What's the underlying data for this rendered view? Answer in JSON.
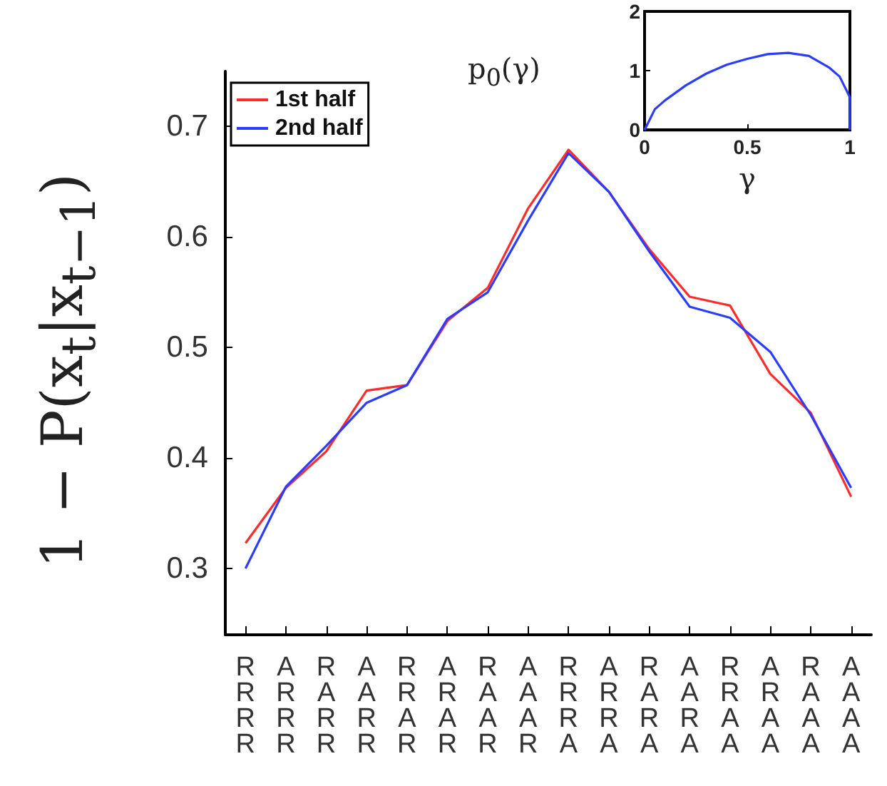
{
  "chart_data": [
    {
      "type": "line",
      "ylabel": "1 − P(x$_{t}$|x$_{t−1}$)",
      "categories": [
        "R\nR\nR\nR",
        "A\nR\nR\nR",
        "R\nA\nR\nR",
        "A\nA\nR\nR",
        "R\nR\nA\nR",
        "A\nR\nA\nR",
        "R\nA\nA\nR",
        "A\nA\nA\nR",
        "R\nR\nR\nA",
        "A\nR\nR\nA",
        "R\nA\nR\nA",
        "A\nA\nR\nA",
        "R\nR\nA\nA",
        "A\nR\nA\nA",
        "R\nA\nA\nA",
        "A\nA\nA\nA"
      ],
      "series": [
        {
          "name": "1st half",
          "color": "#ff2a2a",
          "values": [
            0.323,
            0.373,
            0.406,
            0.461,
            0.466,
            0.524,
            0.554,
            0.626,
            0.679,
            0.641,
            0.589,
            0.546,
            0.538,
            0.476,
            0.441,
            0.365
          ]
        },
        {
          "name": "2nd half",
          "color": "#2a3cff",
          "values": [
            0.3,
            0.374,
            0.411,
            0.45,
            0.466,
            0.526,
            0.55,
            0.615,
            0.676,
            0.641,
            0.587,
            0.537,
            0.527,
            0.496,
            0.439,
            0.373
          ]
        }
      ],
      "ylim": [
        0.24,
        0.75
      ],
      "yticks": [
        0.3,
        0.4,
        0.5,
        0.6,
        0.7
      ],
      "legend": "top left",
      "grid": false,
      "marker": "none",
      "line_style": "solid"
    },
    {
      "type": "line",
      "xlabel": "γ",
      "ylabel": "p$_{0}$(γ)",
      "series": [
        {
          "color": "#2a3cff",
          "x": [
            0,
            0.05,
            0.1,
            0.2,
            0.3,
            0.4,
            0.5,
            0.6,
            0.7,
            0.8,
            0.9,
            0.95,
            1.0,
            1.0
          ],
          "values": [
            0,
            0.35,
            0.5,
            0.75,
            0.95,
            1.1,
            1.2,
            1.28,
            1.3,
            1.25,
            1.05,
            0.9,
            0.55,
            0
          ]
        }
      ],
      "xlim": [
        0,
        1
      ],
      "xticks": [
        0,
        0.5,
        1
      ],
      "ylim": [
        0,
        2
      ],
      "yticks": [
        0,
        1,
        2
      ],
      "grid": false,
      "marker": "none",
      "line_style": "solid"
    }
  ]
}
